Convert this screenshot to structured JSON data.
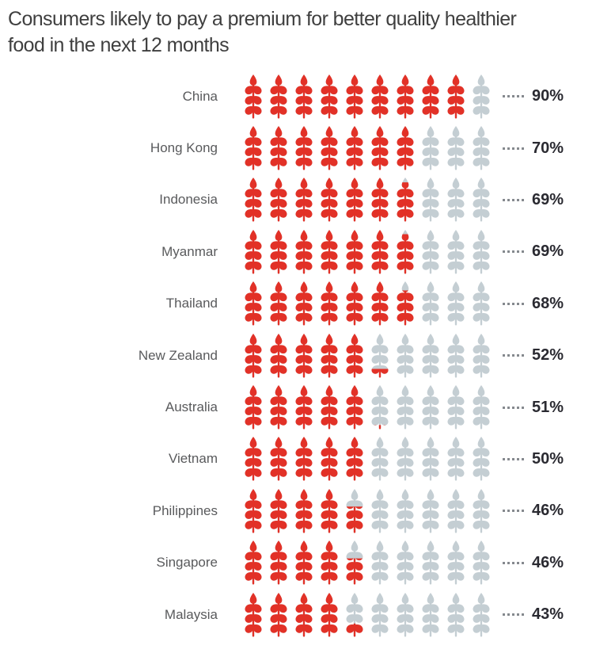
{
  "title_lines": [
    "Consumers likely to pay a premium for better quality healthier",
    "food in the next 12 months"
  ],
  "colors": {
    "filled": "#e23127",
    "empty": "#c4ced3",
    "title": "#3f3f3f",
    "label": "#595a5c",
    "value": "#2a2a31",
    "dots": "#85898e",
    "background": "#ffffff"
  },
  "chart_data": {
    "type": "bar",
    "style": "pictogram",
    "icon": "wheat-stalk",
    "icons_per_row": 10,
    "unit_per_icon": 10,
    "title": "Consumers likely to pay a premium for better quality healthier food in the next 12 months",
    "categories": [
      "China",
      "Hong Kong",
      "Indonesia",
      "Myanmar",
      "Thailand",
      "New Zealand",
      "Australia",
      "Vietnam",
      "Philippines",
      "Singapore",
      "Malaysia"
    ],
    "values": [
      90,
      70,
      69,
      69,
      68,
      52,
      51,
      50,
      46,
      46,
      43
    ],
    "value_labels": [
      "90%",
      "70%",
      "69%",
      "69%",
      "68%",
      "52%",
      "51%",
      "50%",
      "46%",
      "46%",
      "43%"
    ],
    "xlim": [
      0,
      100
    ],
    "legend": "none",
    "grid": false,
    "fill_direction": "bottom-up"
  }
}
